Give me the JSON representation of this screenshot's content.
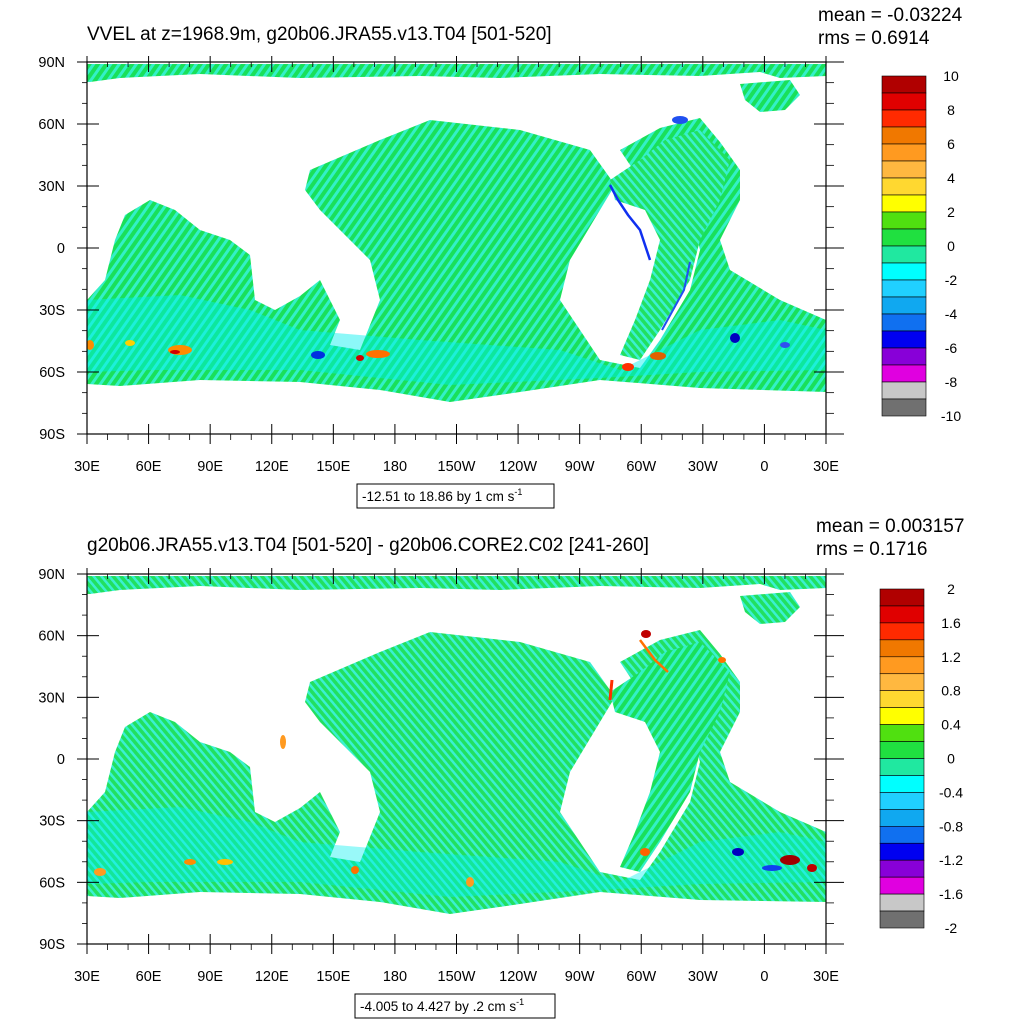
{
  "chart_data": [
    {
      "type": "heatmap",
      "title": "VVEL at z=1968.9m, g20b06.JRA55.v13.T04 [501-520]",
      "stats": {
        "mean": "mean = -0.03224",
        "rms": "rms = 0.6914"
      },
      "x_ticks": [
        "30E",
        "60E",
        "90E",
        "120E",
        "150E",
        "180",
        "150W",
        "120W",
        "90W",
        "60W",
        "30W",
        "0",
        "30E"
      ],
      "y_ticks": [
        "90N",
        "60N",
        "30N",
        "0",
        "30S",
        "60S",
        "90S"
      ],
      "xlim": [
        30,
        390
      ],
      "ylim": [
        -90,
        90
      ],
      "range_label": "-12.51 to 18.86 by 1 cm s",
      "range_exponent": "-1",
      "colorbar": {
        "labels": [
          "10",
          "8",
          "6",
          "4",
          "2",
          "0",
          "-2",
          "-4",
          "-6",
          "-8",
          "-10"
        ],
        "colors": [
          "#B00000",
          "#E00000",
          "#FF2A00",
          "#F07800",
          "#FF9A20",
          "#FFB840",
          "#FFD830",
          "#FFFF00",
          "#50E010",
          "#20E040",
          "#20E8A0",
          "#00FFFF",
          "#20D0FF",
          "#10A8F0",
          "#1070F0",
          "#0000F0",
          "#8800D8",
          "#E000E0",
          "#C8C8C8",
          "#707070"
        ]
      }
    },
    {
      "type": "heatmap",
      "title": "g20b06.JRA55.v13.T04 [501-520] - g20b06.CORE2.C02 [241-260]",
      "stats": {
        "mean": "mean = 0.003157",
        "rms": "rms = 0.1716"
      },
      "x_ticks": [
        "30E",
        "60E",
        "90E",
        "120E",
        "150E",
        "180",
        "150W",
        "120W",
        "90W",
        "60W",
        "30W",
        "0",
        "30E"
      ],
      "y_ticks": [
        "90N",
        "60N",
        "30N",
        "0",
        "30S",
        "60S",
        "90S"
      ],
      "xlim": [
        30,
        390
      ],
      "ylim": [
        -90,
        90
      ],
      "range_label": "-4.005 to 4.427 by .2 cm s",
      "range_exponent": "-1",
      "colorbar": {
        "labels": [
          "2",
          "1.6",
          "1.2",
          "0.8",
          "0.4",
          "0",
          "-0.4",
          "-0.8",
          "-1.2",
          "-1.6",
          "-2"
        ],
        "colors": [
          "#B00000",
          "#E00000",
          "#FF2A00",
          "#F07800",
          "#FF9A20",
          "#FFB840",
          "#FFD830",
          "#FFFF00",
          "#50E010",
          "#20E040",
          "#20E8A0",
          "#00FFFF",
          "#20D0FF",
          "#10A8F0",
          "#1070F0",
          "#0000F0",
          "#8800D8",
          "#E000E0",
          "#C8C8C8",
          "#707070"
        ]
      }
    }
  ]
}
